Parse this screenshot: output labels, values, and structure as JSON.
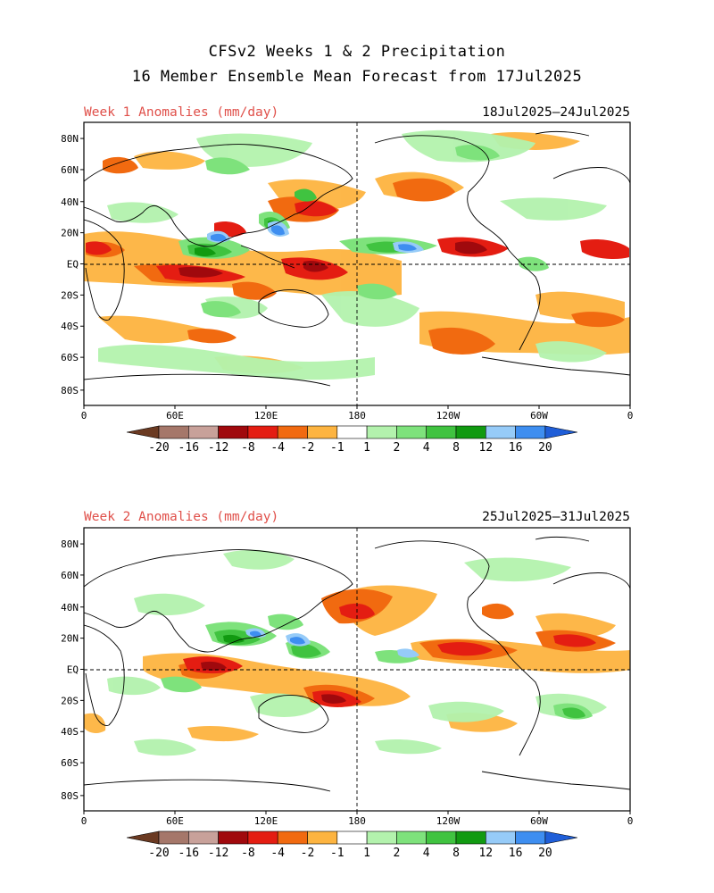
{
  "title_line1": "CFSv2 Weeks 1 & 2 Precipitation",
  "title_line2": "16 Member Ensemble Mean Forecast from 17Jul2025",
  "panels": [
    {
      "label": "Week 1 Anomalies (mm/day)",
      "dates": "18Jul2025—24Jul2025"
    },
    {
      "label": "Week 2 Anomalies (mm/day)",
      "dates": "25Jul2025—31Jul2025"
    }
  ],
  "lat_labels": [
    "80N",
    "60N",
    "40N",
    "20N",
    "EQ",
    "20S",
    "40S",
    "60S",
    "80S"
  ],
  "lon_labels": [
    "0",
    "60E",
    "120E",
    "180",
    "120W",
    "60W",
    "0"
  ],
  "colorbar": {
    "labels": [
      "-20",
      "-16",
      "-12",
      "-8",
      "-4",
      "-2",
      "-1",
      "1",
      "2",
      "4",
      "8",
      "12",
      "16",
      "20"
    ],
    "colors": [
      "#6b3a22",
      "#a5776a",
      "#c8a19a",
      "#a0090d",
      "#e41d12",
      "#f16a10",
      "#fdb440",
      "#ffffff",
      "#b3f2ad",
      "#7ee27c",
      "#40c340",
      "#119a11",
      "#96cbf8",
      "#3e8ef0",
      "#1f5ed8"
    ]
  },
  "colors": {
    "dry": "#f16a10",
    "wet": "#40c340",
    "title_red": "#e0504a"
  }
}
